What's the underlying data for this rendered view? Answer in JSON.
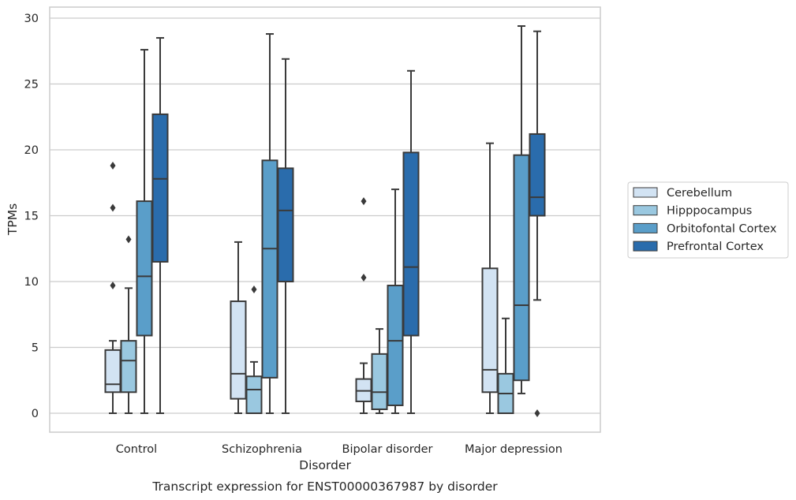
{
  "caption": "Transcript expression for ENST00000367987 by disorder",
  "chart_data": {
    "type": "box",
    "xlabel": "Disorder",
    "ylabel": "TPMs",
    "ylim": [
      -1.4,
      31
    ],
    "yticks": [
      0,
      5,
      10,
      15,
      20,
      25,
      30
    ],
    "grid": true,
    "legend_position": "right",
    "categories": [
      "Control",
      "Schizophrenia",
      "Bipolar disorder",
      "Major depression"
    ],
    "series": [
      {
        "name": "Cerebellum",
        "color": "#d2e3f3",
        "boxes": [
          {
            "whislo": 0,
            "q1": 1.6,
            "med": 2.2,
            "q3": 4.8,
            "whishi": 5.5,
            "fliers": [
              9.7,
              15.6,
              18.8
            ]
          },
          {
            "whislo": 0,
            "q1": 1.1,
            "med": 3.0,
            "q3": 8.5,
            "whishi": 13.0,
            "fliers": []
          },
          {
            "whislo": 0,
            "q1": 0.9,
            "med": 1.7,
            "q3": 2.6,
            "whishi": 3.8,
            "fliers": [
              10.3,
              16.1
            ]
          },
          {
            "whislo": 0,
            "q1": 1.6,
            "med": 3.3,
            "q3": 11.0,
            "whishi": 20.5,
            "fliers": []
          }
        ]
      },
      {
        "name": "Hipppocampus",
        "color": "#9ac8e0",
        "boxes": [
          {
            "whislo": 0,
            "q1": 1.6,
            "med": 4.0,
            "q3": 5.5,
            "whishi": 9.5,
            "fliers": [
              13.2
            ]
          },
          {
            "whislo": 0,
            "q1": 0,
            "med": 1.8,
            "q3": 2.8,
            "whishi": 3.9,
            "fliers": [
              9.4
            ]
          },
          {
            "whislo": 0,
            "q1": 0.3,
            "med": 1.6,
            "q3": 4.5,
            "whishi": 6.4,
            "fliers": []
          },
          {
            "whislo": 0,
            "q1": 0,
            "med": 1.5,
            "q3": 3.0,
            "whishi": 7.2,
            "fliers": []
          }
        ]
      },
      {
        "name": "Orbitofontal Cortex",
        "color": "#5a9ec9",
        "boxes": [
          {
            "whislo": 0,
            "q1": 5.9,
            "med": 10.4,
            "q3": 16.1,
            "whishi": 27.6,
            "fliers": []
          },
          {
            "whislo": 0,
            "q1": 2.7,
            "med": 12.5,
            "q3": 19.2,
            "whishi": 28.8,
            "fliers": []
          },
          {
            "whislo": 0,
            "q1": 0.6,
            "med": 5.5,
            "q3": 9.7,
            "whishi": 17.0,
            "fliers": []
          },
          {
            "whislo": 1.5,
            "q1": 2.5,
            "med": 8.2,
            "q3": 19.6,
            "whishi": 29.4,
            "fliers": []
          }
        ]
      },
      {
        "name": "Prefrontal Cortex",
        "color": "#2a6cac",
        "boxes": [
          {
            "whislo": 0,
            "q1": 11.5,
            "med": 17.8,
            "q3": 22.7,
            "whishi": 28.5,
            "fliers": []
          },
          {
            "whislo": 0,
            "q1": 10.0,
            "med": 15.4,
            "q3": 18.6,
            "whishi": 26.9,
            "fliers": []
          },
          {
            "whislo": 0,
            "q1": 5.9,
            "med": 11.1,
            "q3": 19.8,
            "whishi": 26.0,
            "fliers": []
          },
          {
            "whislo": 8.6,
            "q1": 15.0,
            "med": 16.4,
            "q3": 21.2,
            "whishi": 29.0,
            "fliers": [
              0
            ]
          }
        ]
      }
    ]
  }
}
